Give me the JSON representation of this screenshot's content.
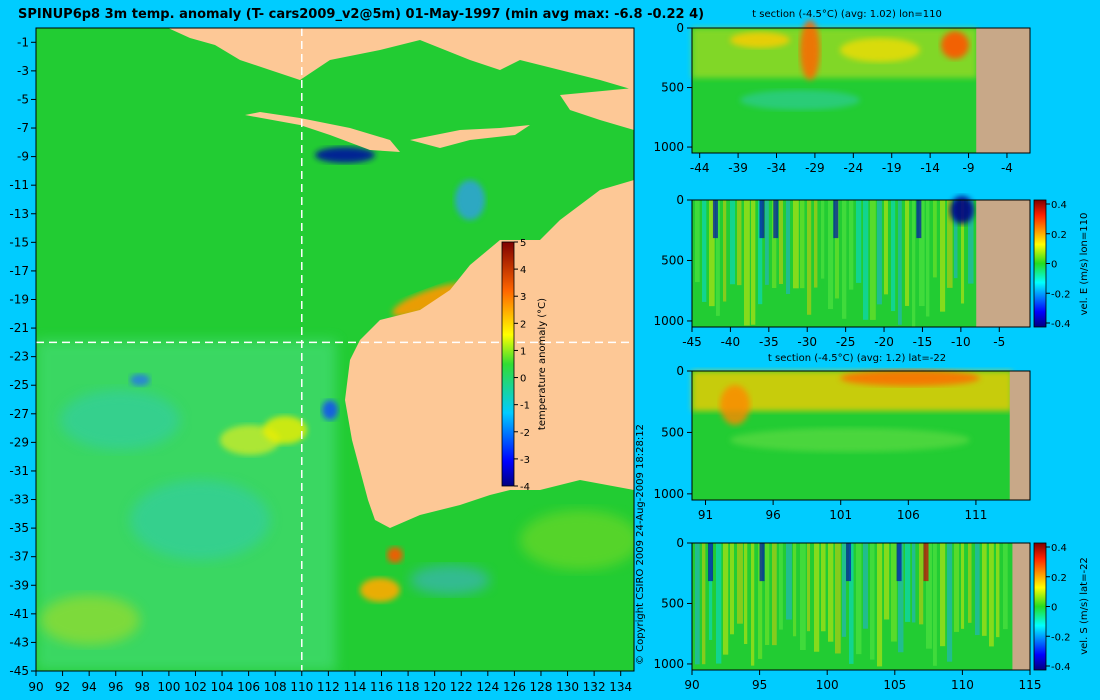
{
  "colors": {
    "background": "#00ccff",
    "land": "#fdc896",
    "section_land": "#c8a888",
    "ocean_base": "#22cc33",
    "anomaly_warm": "#ff8800",
    "anomaly_cold": "#0033cc"
  },
  "chart_data": [
    {
      "id": "map",
      "type": "heatmap",
      "title": "SPINUP6p8 3m temp. anomaly (T- cars2009_v2@5m) 01-May-1997 (min avg max: -6.8 -0.22 4)",
      "x_ticks": [
        90,
        92,
        94,
        96,
        98,
        100,
        102,
        104,
        106,
        108,
        110,
        112,
        114,
        116,
        118,
        120,
        122,
        124,
        126,
        128,
        130,
        132,
        134
      ],
      "y_ticks": [
        -1,
        -3,
        -5,
        -7,
        -9,
        -11,
        -13,
        -15,
        -17,
        -19,
        -21,
        -23,
        -25,
        -27,
        -29,
        -31,
        -33,
        -35,
        -37,
        -39,
        -41,
        -43,
        -45
      ],
      "xlim": [
        90,
        135
      ],
      "ylim": [
        -45,
        0
      ],
      "section_lines": {
        "lon": 110,
        "lat": -22
      },
      "stats": {
        "min": -6.8,
        "avg": -0.22,
        "max": 4
      },
      "colorbar": {
        "label": "temperature anomaly (°C)",
        "ticks": [
          5,
          4,
          3,
          2,
          1,
          0,
          -1,
          -2,
          -3,
          -4
        ],
        "range": [
          -4,
          5
        ]
      }
    },
    {
      "id": "section-t-lon",
      "type": "heatmap",
      "title": "t section (-4.5°C) (avg: 1.02) lon=110",
      "x_ticks": [
        -44,
        -39,
        -34,
        -29,
        -24,
        -19,
        -14,
        -9,
        -4
      ],
      "y_ticks": [
        0,
        500,
        1000
      ],
      "xlim": [
        -45,
        -1
      ],
      "ylim": [
        1050,
        0
      ],
      "land_from_x": -8
    },
    {
      "id": "section-vel-e",
      "type": "heatmap",
      "title": "",
      "x_ticks": [
        -45,
        -40,
        -35,
        -30,
        -25,
        -20,
        -15,
        -10,
        -5
      ],
      "y_ticks": [
        0,
        500,
        1000
      ],
      "xlim": [
        -45,
        -1
      ],
      "ylim": [
        1050,
        0
      ],
      "land_from_x": -8,
      "colorbar": {
        "label": "vel. E (m/s) lon=110",
        "ticks": [
          "0.4",
          "0.2",
          "0",
          "-0.2",
          "-0.4"
        ],
        "range": [
          -0.4,
          0.4
        ]
      }
    },
    {
      "id": "section-t-lat",
      "type": "heatmap",
      "title": "t section (-4.5°C) (avg: 1.2) lat=-22",
      "x_ticks": [
        91,
        96,
        101,
        106,
        111
      ],
      "y_ticks": [
        0,
        500,
        1000
      ],
      "xlim": [
        90,
        115
      ],
      "ylim": [
        1050,
        0
      ],
      "land_from_x": 113.5
    },
    {
      "id": "section-vel-s",
      "type": "heatmap",
      "title": "",
      "x_ticks": [
        90,
        95,
        100,
        105,
        110,
        115
      ],
      "y_ticks": [
        0,
        500,
        1000
      ],
      "xlim": [
        90,
        115
      ],
      "ylim": [
        1050,
        0
      ],
      "land_from_x": 113.7,
      "colorbar": {
        "label": "vel. S (m/s) lat=-22",
        "ticks": [
          "0.4",
          "0.2",
          "0",
          "-0.2",
          "-0.4"
        ],
        "range": [
          -0.4,
          0.4
        ]
      }
    }
  ],
  "copyright": "© Copyright CSIRO 2009   24-Aug-2009 18:28:12"
}
